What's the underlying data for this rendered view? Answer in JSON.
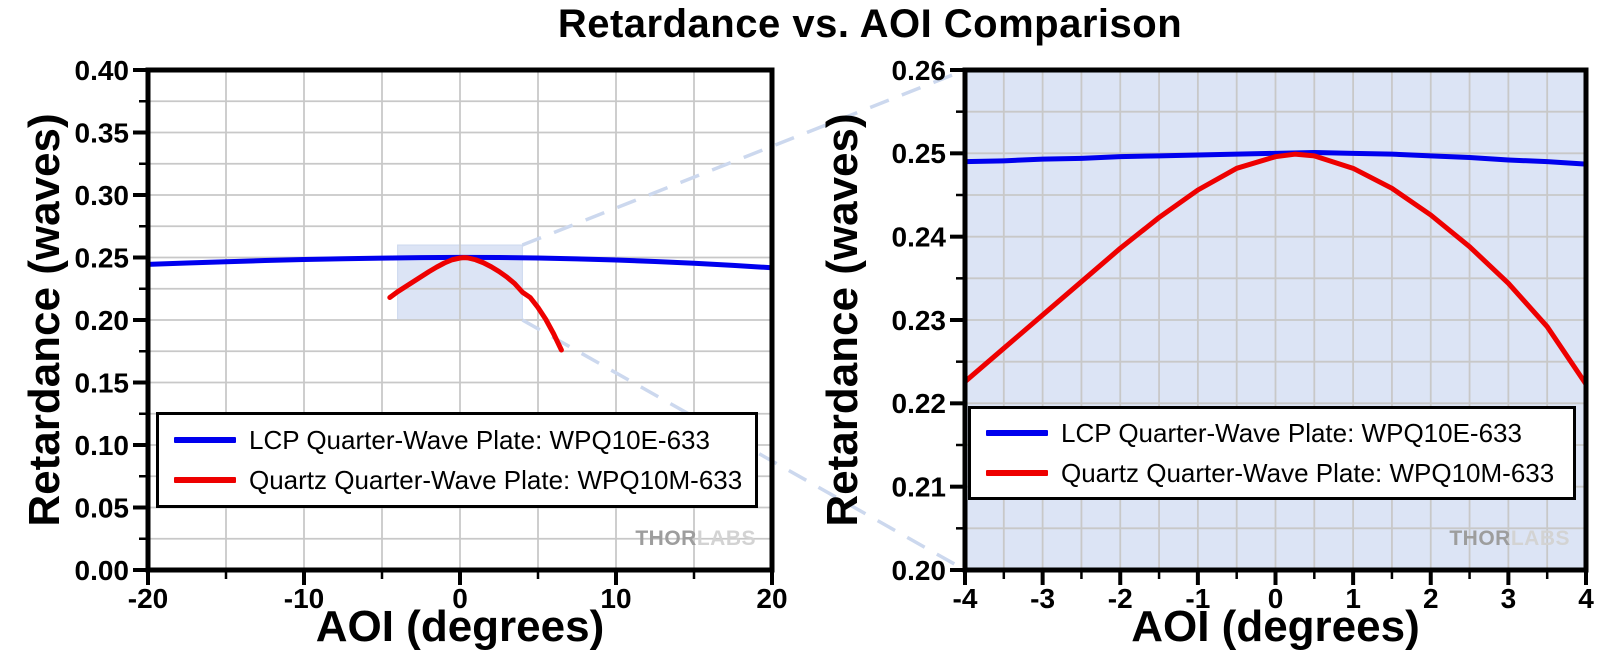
{
  "figure": {
    "title": "Retardance vs. AOI Comparison",
    "watermark": {
      "thor": "THOR",
      "labs": "LABS"
    }
  },
  "colors": {
    "lcp_blue": "#0000ee",
    "quartz_red": "#ee0000",
    "grid": "#c8c8c8",
    "frame": "#000000",
    "zoom_fill": "#dce4f5",
    "connector_dash": "#ccd8ee",
    "right_plot_bg": "#dce4f5"
  },
  "chart_data": [
    {
      "id": "overview-plot",
      "type": "line",
      "xlabel": "AOI (degrees)",
      "ylabel": "Retardance (waves)",
      "xlim": [
        -20,
        20
      ],
      "ylim": [
        0.0,
        0.4
      ],
      "grid": {
        "on": true,
        "x_step": 5,
        "y_step": 0.025
      },
      "x_ticks": {
        "values": [
          -20,
          -10,
          0,
          10,
          20
        ],
        "labels": [
          "-20",
          "-10",
          "0",
          "10",
          "20"
        ],
        "minor_step": 5
      },
      "y_ticks": {
        "values": [
          0.0,
          0.05,
          0.1,
          0.15,
          0.2,
          0.25,
          0.3,
          0.35,
          0.4
        ],
        "labels": [
          "0.00",
          "0.05",
          "0.10",
          "0.15",
          "0.20",
          "0.25",
          "0.30",
          "0.35",
          "0.40"
        ],
        "minor_step": 0.025
      },
      "plot_bg": "#ffffff",
      "legend_position": "lower-left-inside",
      "zoom_region": {
        "xlim": [
          -4,
          4
        ],
        "ylim": [
          0.2,
          0.26
        ]
      },
      "series": [
        {
          "name": "LCP Quarter-Wave Plate: WPQ10E-633",
          "color": "#0000ee",
          "points": [
            [
              -20,
              0.2445
            ],
            [
              -17.5,
              0.2456
            ],
            [
              -15,
              0.2466
            ],
            [
              -12.5,
              0.2476
            ],
            [
              -10,
              0.2484
            ],
            [
              -7.5,
              0.249
            ],
            [
              -5,
              0.2495
            ],
            [
              -2.5,
              0.2499
            ],
            [
              0,
              0.2501
            ],
            [
              2.5,
              0.25
            ],
            [
              5,
              0.2496
            ],
            [
              7.5,
              0.2489
            ],
            [
              10,
              0.248
            ],
            [
              12.5,
              0.2468
            ],
            [
              15,
              0.2454
            ],
            [
              17.5,
              0.2437
            ],
            [
              20,
              0.2418
            ]
          ]
        },
        {
          "name": "Quartz Quarter-Wave Plate: WPQ10M-633",
          "color": "#ee0000",
          "points": [
            [
              -4.5,
              0.218
            ],
            [
              -4,
              0.2226
            ],
            [
              -3.5,
              0.2266
            ],
            [
              -3,
              0.2306
            ],
            [
              -2.5,
              0.2346
            ],
            [
              -2,
              0.2386
            ],
            [
              -1.5,
              0.2423
            ],
            [
              -1,
              0.2456
            ],
            [
              -0.5,
              0.2482
            ],
            [
              0,
              0.2496
            ],
            [
              0.25,
              0.2499
            ],
            [
              0.5,
              0.2497
            ],
            [
              1,
              0.2482
            ],
            [
              1.5,
              0.2458
            ],
            [
              2,
              0.2426
            ],
            [
              2.5,
              0.2388
            ],
            [
              3,
              0.2344
            ],
            [
              3.5,
              0.2292
            ],
            [
              4,
              0.2223
            ],
            [
              4.5,
              0.218
            ],
            [
              5,
              0.21
            ],
            [
              5.5,
              0.2005
            ],
            [
              6,
              0.189
            ],
            [
              6.5,
              0.176
            ]
          ]
        }
      ]
    },
    {
      "id": "zoom-plot",
      "type": "line",
      "xlabel": "AOI (degrees)",
      "ylabel": "Retardance (waves)",
      "xlim": [
        -4,
        4
      ],
      "ylim": [
        0.2,
        0.26
      ],
      "grid": {
        "on": true,
        "x_step": 0.5,
        "y_step": 0.005
      },
      "x_ticks": {
        "values": [
          -4,
          -3,
          -2,
          -1,
          0,
          1,
          2,
          3,
          4
        ],
        "labels": [
          "-4",
          "-3",
          "-2",
          "-1",
          "0",
          "1",
          "2",
          "3",
          "4"
        ],
        "minor_step": 0.5
      },
      "y_ticks": {
        "values": [
          0.2,
          0.21,
          0.22,
          0.23,
          0.24,
          0.25,
          0.26
        ],
        "labels": [
          "0.20",
          "0.21",
          "0.22",
          "0.23",
          "0.24",
          "0.25",
          "0.26"
        ],
        "minor_step": 0.005
      },
      "plot_bg": "#dce4f5",
      "legend_position": "lower-left-inside",
      "series": [
        {
          "name": "LCP Quarter-Wave Plate: WPQ10E-633",
          "color": "#0000ee",
          "points": [
            [
              -4,
              0.249
            ],
            [
              -3.5,
              0.2491
            ],
            [
              -3,
              0.2493
            ],
            [
              -2.5,
              0.2494
            ],
            [
              -2,
              0.2496
            ],
            [
              -1.5,
              0.2497
            ],
            [
              -1,
              0.2498
            ],
            [
              -0.5,
              0.2499
            ],
            [
              0,
              0.25
            ],
            [
              0.5,
              0.2501
            ],
            [
              1,
              0.25
            ],
            [
              1.5,
              0.2499
            ],
            [
              2,
              0.2497
            ],
            [
              2.5,
              0.2495
            ],
            [
              3,
              0.2492
            ],
            [
              3.5,
              0.249
            ],
            [
              4,
              0.2487
            ]
          ]
        },
        {
          "name": "Quartz Quarter-Wave Plate: WPQ10M-633",
          "color": "#ee0000",
          "points": [
            [
              -4,
              0.2226
            ],
            [
              -3.5,
              0.2266
            ],
            [
              -3,
              0.2306
            ],
            [
              -2.5,
              0.2346
            ],
            [
              -2,
              0.2386
            ],
            [
              -1.5,
              0.2423
            ],
            [
              -1,
              0.2456
            ],
            [
              -0.5,
              0.2482
            ],
            [
              0,
              0.2496
            ],
            [
              0.25,
              0.2499
            ],
            [
              0.5,
              0.2497
            ],
            [
              1,
              0.2482
            ],
            [
              1.5,
              0.2458
            ],
            [
              2,
              0.2426
            ],
            [
              2.5,
              0.2388
            ],
            [
              3,
              0.2344
            ],
            [
              3.5,
              0.2292
            ],
            [
              4,
              0.2223
            ]
          ]
        }
      ]
    }
  ]
}
